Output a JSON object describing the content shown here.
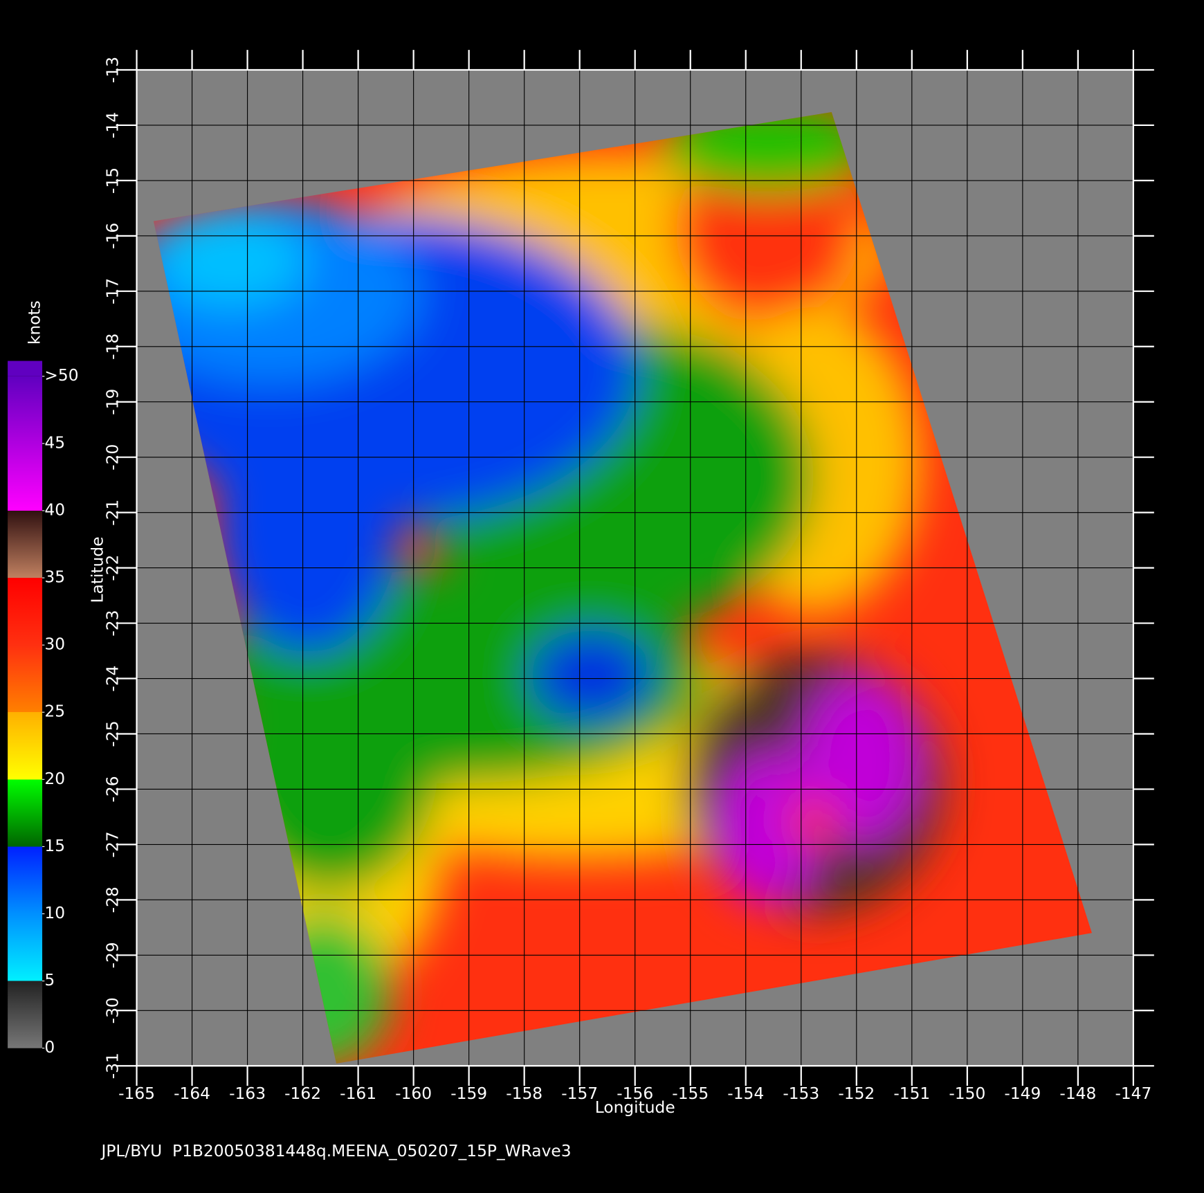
{
  "chart_data": {
    "type": "map",
    "footer": "JPL/BYU  P1B20050381448q.MEENA_050207_15P_WRave3",
    "x_label": "Longitude",
    "y_label": "Latitude",
    "xlim": [
      -165,
      -147
    ],
    "ylim": [
      -31,
      -13
    ],
    "xticks": [
      -165,
      -164,
      -163,
      -162,
      -161,
      -160,
      -159,
      -158,
      -157,
      -156,
      -155,
      -154,
      -153,
      -152,
      -151,
      -150,
      -149,
      -148,
      -147
    ],
    "yticks": [
      -31,
      -30,
      -29,
      -28,
      -27,
      -26,
      -25,
      -24,
      -23,
      -22,
      -21,
      -20,
      -19,
      -18,
      -17,
      -16,
      -15,
      -14,
      -13
    ],
    "grid": true,
    "colorbar": {
      "label": "knots",
      "lim": [
        0,
        50
      ],
      "ticks": [
        0,
        5,
        10,
        15,
        20,
        25,
        30,
        35,
        40,
        45,
        {
          "value": 50,
          "label": ">50"
        }
      ]
    }
  }
}
